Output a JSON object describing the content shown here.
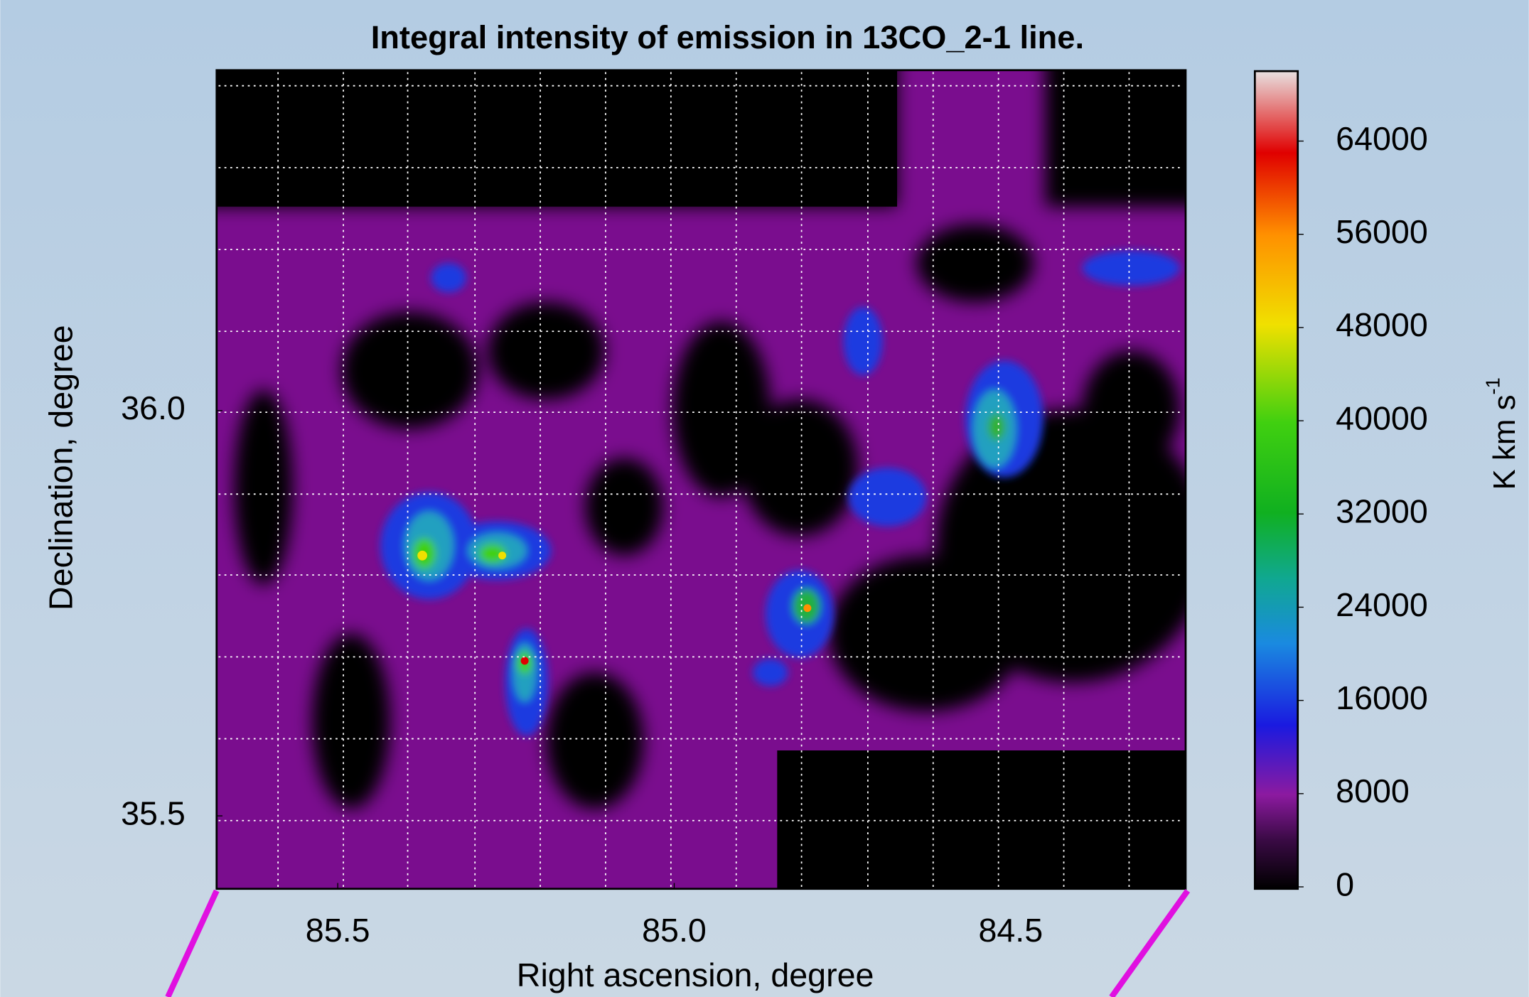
{
  "chart_data": {
    "type": "heatmap",
    "title": "Integral intensity of emission in 13CO_2-1 line.",
    "x_label": "Right ascension, degree",
    "y_label": "Declination, degree",
    "xlim": [
      85.68,
      84.24
    ],
    "xticks": [
      85.5,
      {
        "value": 85,
        "label": "85.0"
      },
      84.5
    ],
    "ylim": [
      35.41,
      36.42
    ],
    "yticks": [
      35.5,
      {
        "value": 36,
        "label": "36.0"
      }
    ],
    "colorbar": {
      "label": "K km s",
      "label_exponent": "-1",
      "lim": [
        0,
        70000
      ],
      "ticks": [
        0,
        8000,
        16000,
        24000,
        32000,
        40000,
        48000,
        56000,
        64000
      ]
    }
  }
}
